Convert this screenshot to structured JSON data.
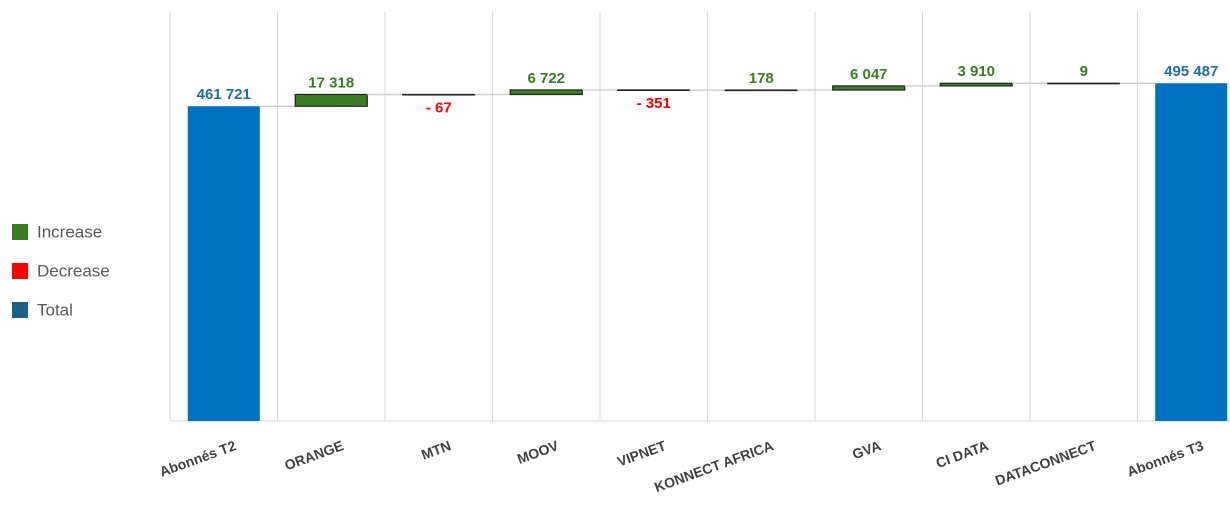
{
  "chart_data": {
    "type": "waterfall",
    "categories": [
      "Abonnés T2",
      "ORANGE",
      "MTN",
      "MOOV",
      "VIPNET",
      "KONNECT AFRICA",
      "GVA",
      "CI DATA",
      "DATACONNECT",
      "Abonnés T3"
    ],
    "values": [
      461721,
      17318,
      -67,
      6722,
      -351,
      178,
      6047,
      3910,
      9,
      495487
    ],
    "value_labels": [
      "461 721",
      "17 318",
      "- 67",
      "6 722",
      "- 351",
      "178",
      "6 047",
      "3 910",
      "9",
      "495 487"
    ],
    "is_total": [
      true,
      false,
      false,
      false,
      false,
      false,
      false,
      false,
      false,
      true
    ],
    "ylim": [
      0,
      600000
    ],
    "legend": {
      "position": "left",
      "entries": [
        {
          "name": "Increase",
          "color": "#3b7d23"
        },
        {
          "name": "Decrease",
          "color": "#ff0000"
        },
        {
          "name": "Total",
          "color": "#0070c0"
        }
      ]
    }
  }
}
